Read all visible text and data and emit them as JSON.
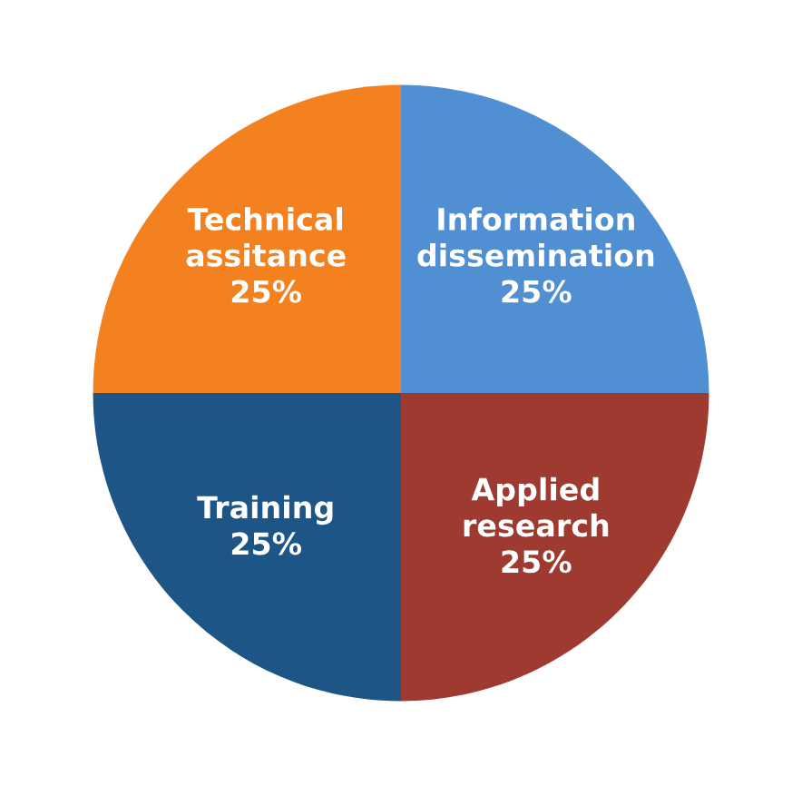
{
  "chart_data": {
    "type": "pie",
    "categories": [
      "Information\ndissemination",
      "Applied\nresearch",
      "Training",
      "Technical\nassitance"
    ],
    "values": [
      25,
      25,
      25,
      25
    ],
    "value_labels": [
      "25%",
      "25%",
      "25%",
      "25%"
    ],
    "colors": [
      "#4f8fd2",
      "#9e3a30",
      "#1d5587",
      "#f48120"
    ]
  }
}
